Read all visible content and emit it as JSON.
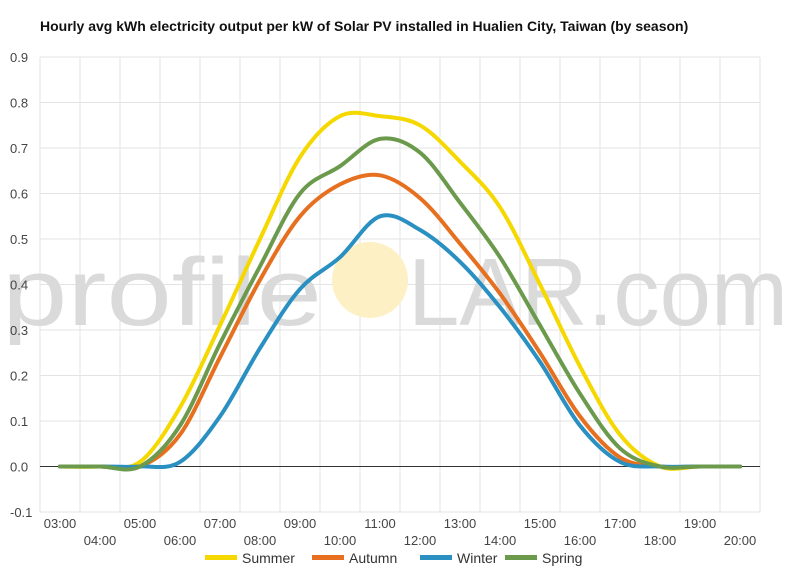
{
  "chart_data": {
    "type": "line",
    "title": "Hourly avg kWh electricity output per kW of Solar PV installed in Hualien City, Taiwan (by season)",
    "xlabel": "",
    "ylabel": "",
    "ylim": [
      -0.1,
      0.9
    ],
    "yticks": [
      "-0.1",
      "0.0",
      "0.1",
      "0.2",
      "0.3",
      "0.4",
      "0.5",
      "0.6",
      "0.7",
      "0.8",
      "0.9"
    ],
    "x": [
      "03:00",
      "04:00",
      "05:00",
      "06:00",
      "07:00",
      "08:00",
      "09:00",
      "10:00",
      "11:00",
      "12:00",
      "13:00",
      "14:00",
      "15:00",
      "16:00",
      "17:00",
      "18:00",
      "19:00",
      "20:00"
    ],
    "grid": true,
    "legend": "bottom",
    "series": [
      {
        "name": "Summer",
        "color": "#f5d800",
        "values": [
          0.0,
          0.0,
          0.01,
          0.13,
          0.31,
          0.5,
          0.68,
          0.77,
          0.77,
          0.75,
          0.67,
          0.57,
          0.4,
          0.22,
          0.07,
          0.0,
          0.0,
          0.0
        ]
      },
      {
        "name": "Autumn",
        "color": "#e67020",
        "values": [
          0.0,
          0.0,
          0.0,
          0.07,
          0.24,
          0.41,
          0.55,
          0.62,
          0.64,
          0.59,
          0.49,
          0.38,
          0.25,
          0.11,
          0.02,
          0.0,
          0.0,
          0.0
        ]
      },
      {
        "name": "Winter",
        "color": "#2a8fc1",
        "values": [
          0.0,
          0.0,
          0.0,
          0.01,
          0.11,
          0.26,
          0.39,
          0.46,
          0.55,
          0.52,
          0.45,
          0.35,
          0.23,
          0.09,
          0.01,
          0.0,
          0.0,
          0.0
        ]
      },
      {
        "name": "Spring",
        "color": "#6b9a4c",
        "values": [
          0.0,
          0.0,
          0.0,
          0.09,
          0.27,
          0.44,
          0.6,
          0.66,
          0.72,
          0.69,
          0.58,
          0.46,
          0.31,
          0.16,
          0.04,
          0.0,
          0.0,
          0.0
        ]
      }
    ]
  },
  "watermark": {
    "left": "profile",
    "right": "LAR.com",
    "sun_color": "#fdf0c4"
  }
}
